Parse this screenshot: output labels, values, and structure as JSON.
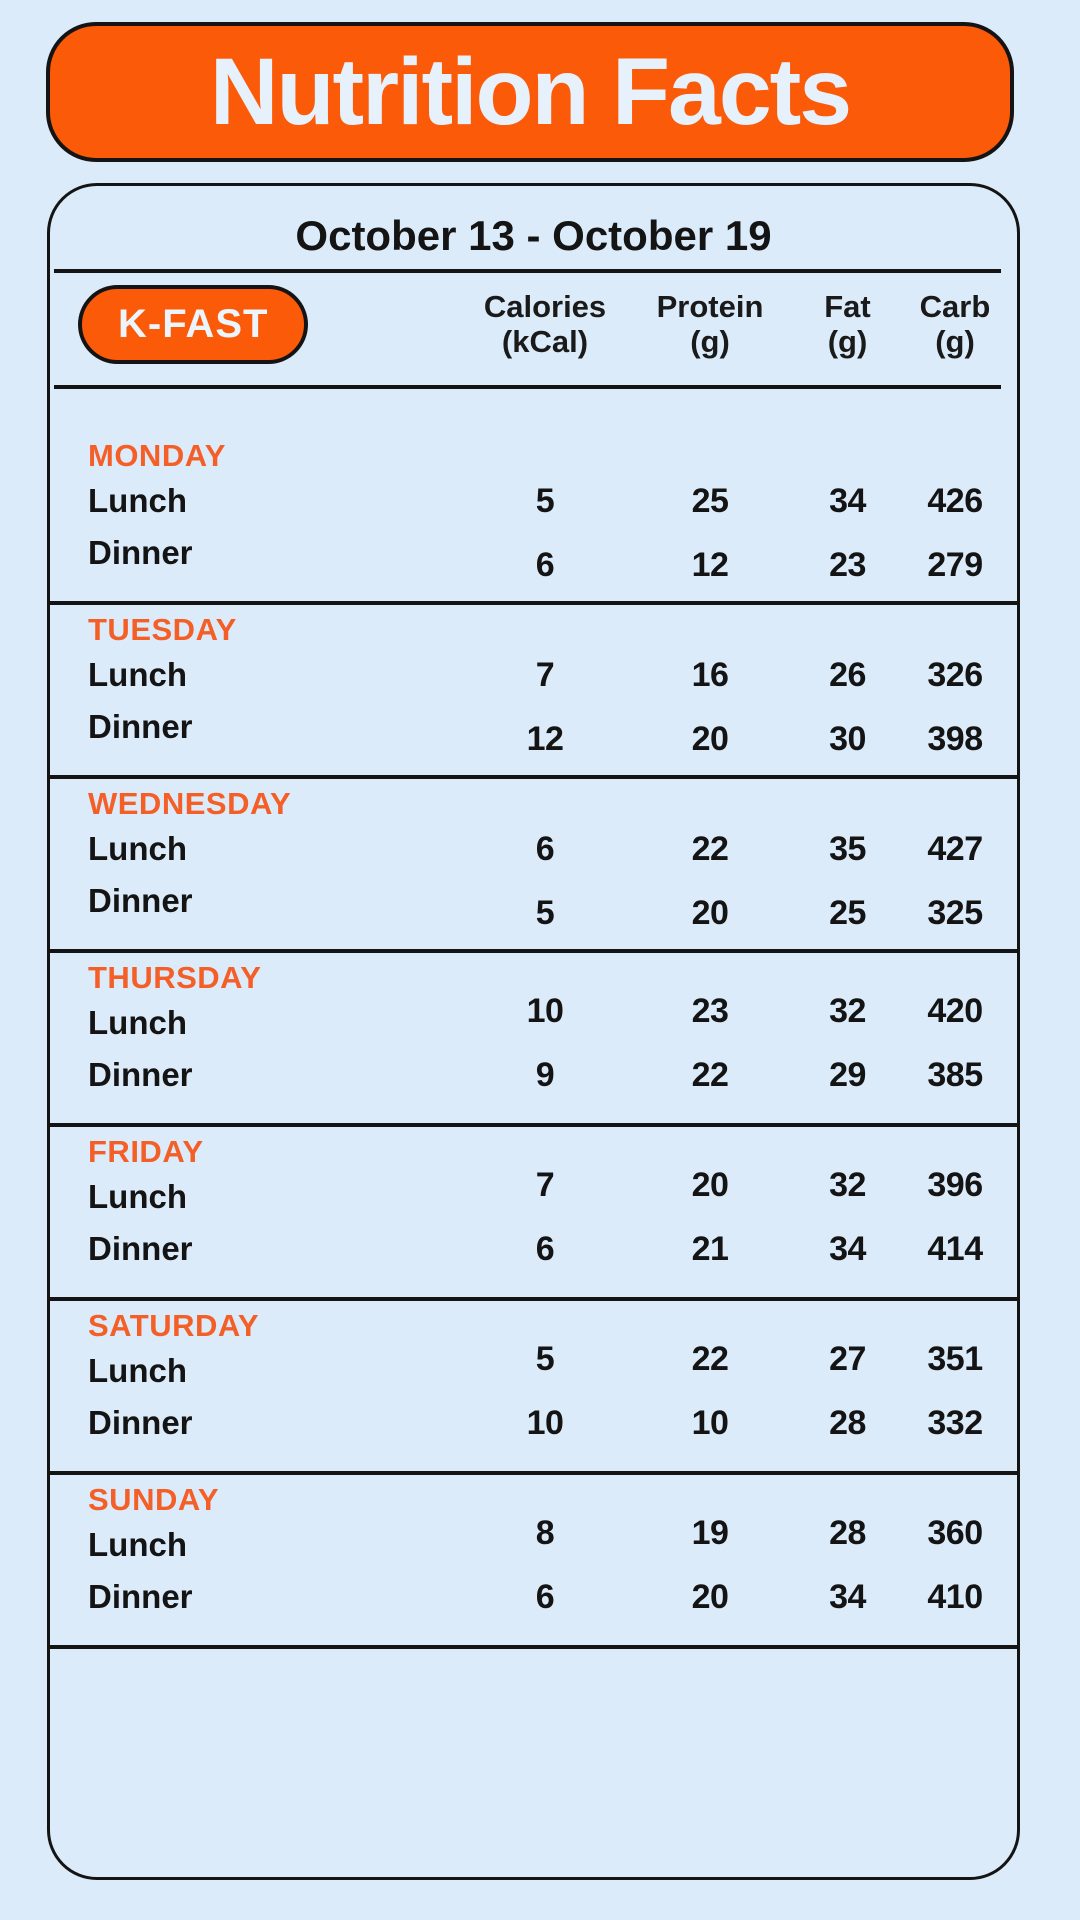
{
  "colors": {
    "background": "#DCEBFA",
    "accent_orange": "#FB5A09",
    "day_label_orange": "#F45F28",
    "ink_black": "#141414",
    "banner_text": "#E7F1FB"
  },
  "banner": {
    "title": "Nutrition Facts"
  },
  "card": {
    "date_range": "October 13 - October 19",
    "badge_label": "K-FAST",
    "columns": [
      {
        "line1": "Calories",
        "line2": "(kCal)"
      },
      {
        "line1": "Protein",
        "line2": "(g)"
      },
      {
        "line1": "Fat",
        "line2": "(g)"
      },
      {
        "line1": "Carb",
        "line2": "(g)"
      }
    ],
    "days": [
      {
        "name": "MONDAY",
        "meals": [
          {
            "label": "Lunch",
            "calories": "5",
            "protein": "25",
            "fat": "34",
            "carb": "426"
          },
          {
            "label": "Dinner",
            "calories": "6",
            "protein": "12",
            "fat": "23",
            "carb": "279"
          }
        ]
      },
      {
        "name": "TUESDAY",
        "meals": [
          {
            "label": "Lunch",
            "calories": "7",
            "protein": "16",
            "fat": "26",
            "carb": "326"
          },
          {
            "label": "Dinner",
            "calories": "12",
            "protein": "20",
            "fat": "30",
            "carb": "398"
          }
        ]
      },
      {
        "name": "WEDNESDAY",
        "meals": [
          {
            "label": "Lunch",
            "calories": "6",
            "protein": "22",
            "fat": "35",
            "carb": "427"
          },
          {
            "label": "Dinner",
            "calories": "5",
            "protein": "20",
            "fat": "25",
            "carb": "325"
          }
        ]
      },
      {
        "name": "THURSDAY",
        "meals": [
          {
            "label": "Lunch",
            "calories": "10",
            "protein": "23",
            "fat": "32",
            "carb": "420"
          },
          {
            "label": "Dinner",
            "calories": "9",
            "protein": "22",
            "fat": "29",
            "carb": "385"
          }
        ]
      },
      {
        "name": "FRIDAY",
        "meals": [
          {
            "label": "Lunch",
            "calories": "7",
            "protein": "20",
            "fat": "32",
            "carb": "396"
          },
          {
            "label": "Dinner",
            "calories": "6",
            "protein": "21",
            "fat": "34",
            "carb": "414"
          }
        ]
      },
      {
        "name": "SATURDAY",
        "meals": [
          {
            "label": "Lunch",
            "calories": "5",
            "protein": "22",
            "fat": "27",
            "carb": "351"
          },
          {
            "label": "Dinner",
            "calories": "10",
            "protein": "10",
            "fat": "28",
            "carb": "332"
          }
        ]
      },
      {
        "name": "SUNDAY",
        "meals": [
          {
            "label": "Lunch",
            "calories": "8",
            "protein": "19",
            "fat": "28",
            "carb": "360"
          },
          {
            "label": "Dinner",
            "calories": "6",
            "protein": "20",
            "fat": "34",
            "carb": "410"
          }
        ]
      }
    ]
  }
}
